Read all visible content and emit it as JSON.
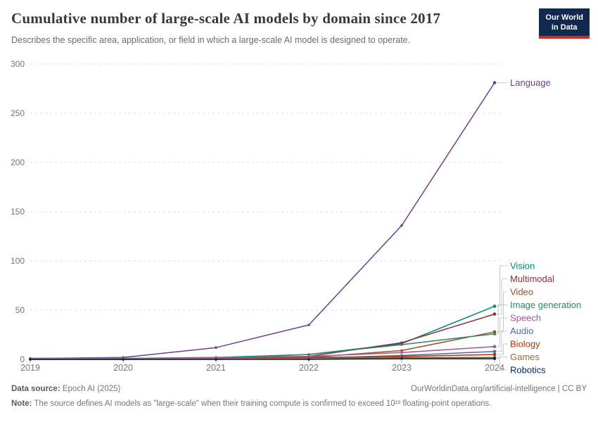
{
  "header": {
    "title": "Cumulative number of large-scale AI models by domain since 2017",
    "subtitle": "Describes the specific area, application, or field in which a large-scale AI model is designed to operate."
  },
  "logo": {
    "line1": "Our World",
    "line2": "in Data"
  },
  "chart_data": {
    "type": "line",
    "title": "Cumulative number of large-scale AI models by domain since 2017",
    "xlabel": "",
    "ylabel": "",
    "x": [
      2019,
      2020,
      2021,
      2022,
      2023,
      2024
    ],
    "ylim": [
      0,
      300
    ],
    "yticks": [
      0,
      50,
      100,
      150,
      200,
      250,
      300
    ],
    "grid": "dashed-horizontal",
    "legend_position": "right-of-line-ends",
    "series": [
      {
        "name": "Language",
        "color": "#6D3E91",
        "values": [
          1,
          2,
          12,
          35,
          136,
          281
        ]
      },
      {
        "name": "Vision",
        "color": "#00847E",
        "values": [
          1,
          1,
          2,
          5,
          16,
          54
        ]
      },
      {
        "name": "Multimodal",
        "color": "#883039",
        "values": [
          0,
          0,
          1,
          3,
          17,
          46
        ]
      },
      {
        "name": "Video",
        "color": "#9A5129",
        "values": [
          0,
          0,
          1,
          2,
          9,
          28
        ]
      },
      {
        "name": "Image generation",
        "color": "#2C8465",
        "values": [
          0,
          0,
          1,
          5,
          15,
          26
        ]
      },
      {
        "name": "Speech",
        "color": "#A2559C",
        "values": [
          1,
          1,
          2,
          3,
          7,
          13
        ]
      },
      {
        "name": "Audio",
        "color": "#4C6A9C",
        "values": [
          0,
          0,
          0,
          1,
          4,
          8
        ]
      },
      {
        "name": "Biology",
        "color": "#B13507",
        "values": [
          0,
          0,
          1,
          2,
          3,
          5
        ]
      },
      {
        "name": "Games",
        "color": "#996D39",
        "values": [
          1,
          1,
          1,
          1,
          2,
          2
        ]
      },
      {
        "name": "Robotics",
        "color": "#00295B",
        "values": [
          0,
          0,
          0,
          0,
          1,
          1
        ]
      }
    ]
  },
  "footer": {
    "source_label": "Data source:",
    "source_value": " Epoch AI (2025)",
    "link": "OurWorldinData.org/artificial-intelligence | CC BY",
    "note_label": "Note:",
    "note_value": " The source defines AI models as \"large-scale\" when their training compute is confirmed to exceed 10²³ floating-point operations."
  }
}
